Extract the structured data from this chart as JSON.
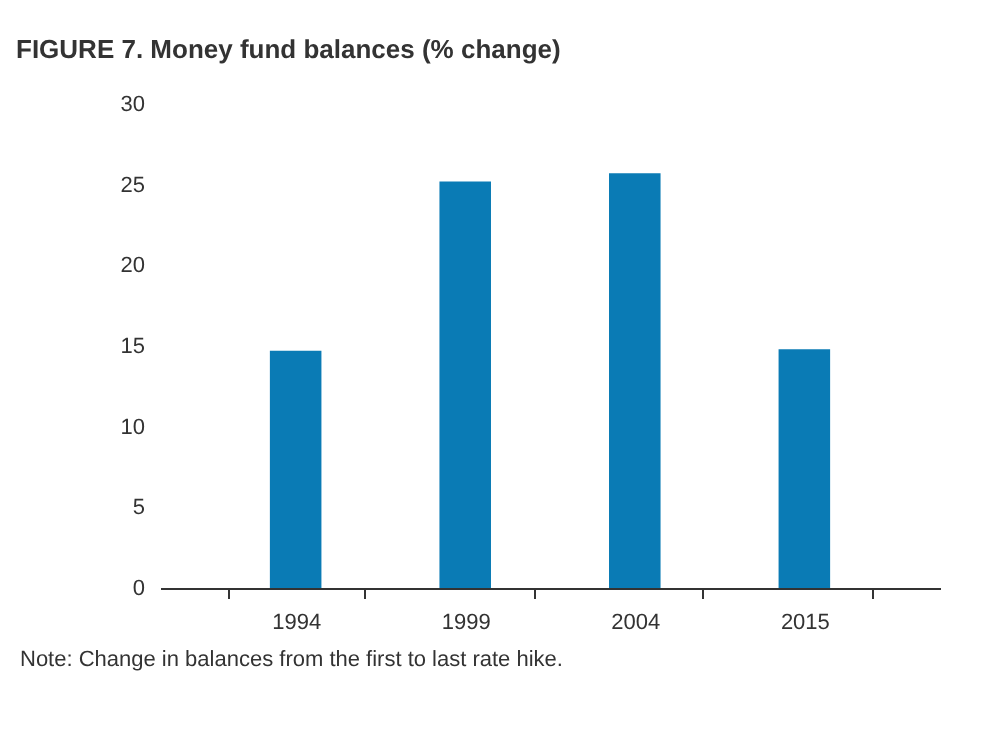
{
  "chart_data": {
    "type": "bar",
    "title": "FIGURE 7. Money fund balances (% change)",
    "categories": [
      "1994",
      "1999",
      "2004",
      "2015"
    ],
    "values": [
      14.7,
      25.2,
      25.7,
      14.8
    ],
    "color": "#0a7bb5",
    "ylim": [
      0,
      30
    ],
    "yticks": [
      0,
      5,
      10,
      15,
      20,
      25,
      30
    ],
    "grid": false,
    "annotations": [
      "Note: Change in balances from the first to last rate hike."
    ]
  }
}
